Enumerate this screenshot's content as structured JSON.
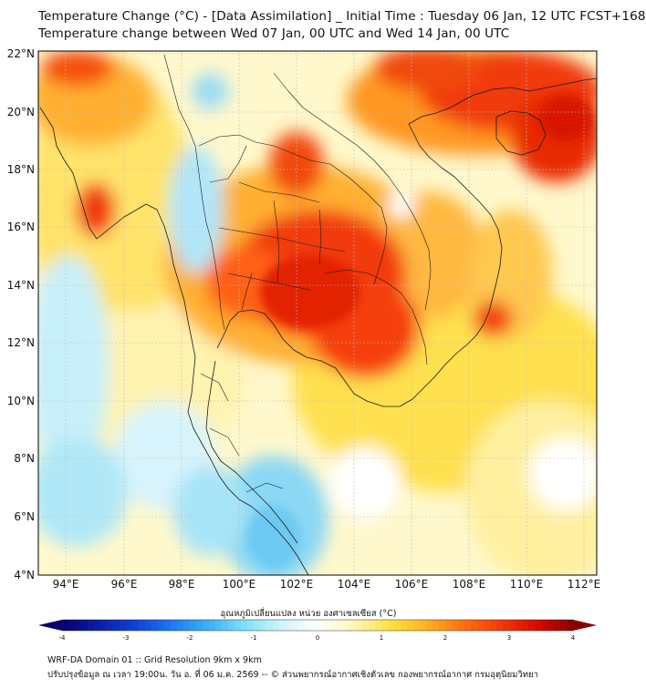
{
  "header": {
    "title_line1": "Temperature Change (°C) - [Data Assimilation] _ Initial Time : Tuesday 06 Jan, 12 UTC FCST+168",
    "title_line2": "Temperature change between Wed 07 Jan, 00 UTC and Wed 14 Jan, 00 UTC"
  },
  "map": {
    "lat_labels": [
      "22°N",
      "20°N",
      "18°N",
      "16°N",
      "14°N",
      "12°N",
      "10°N",
      "8°N",
      "6°N",
      "4°N"
    ],
    "lon_labels": [
      "94°E",
      "96°E",
      "98°E",
      "100°E",
      "102°E",
      "104°E",
      "106°E",
      "108°E",
      "110°E",
      "112°E"
    ]
  },
  "colorbar": {
    "title": "อุณหภูมิเปลี่ยนแปลง หน่วย องศาเซลเซียส (°C)",
    "tick_labels": [
      "-4",
      "-3",
      "-2",
      "-1",
      "0",
      "1",
      "2",
      "3",
      "4"
    ],
    "colors": [
      "#08006e",
      "#0a1ea8",
      "#1040d8",
      "#1e78f0",
      "#3cb0f5",
      "#7ee0fa",
      "#d0f4fc",
      "#ffffff",
      "#fff6b8",
      "#ffe040",
      "#ffb020",
      "#ff7010",
      "#f23a08",
      "#d80a00",
      "#8a0000"
    ]
  },
  "footer": {
    "line1": "WRF-DA Domain 01 :: Grid Resolution 9km x 9km",
    "line2": "ปรับปรุงข้อมูล ณ เวลา 19:00น. วัน อ. ที่ 06 ม.ค. 2569 -- © ส่วนพยากรณ์อากาศเชิงตัวเลข กองพยากรณ์อากาศ กรมอุตุนิยมวิทยา"
  }
}
